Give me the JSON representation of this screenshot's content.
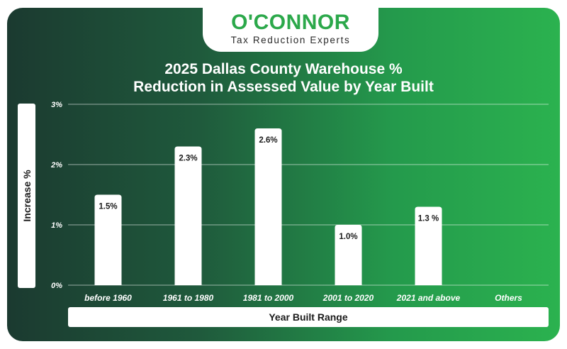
{
  "logo": {
    "name": "O'CONNOR",
    "tagline": "Tax Reduction Experts"
  },
  "chart_data": {
    "type": "bar",
    "title_line1": "2025 Dallas County Warehouse %",
    "title_line2": "Reduction in Assessed Value by Year Built",
    "xlabel": "Year Built Range",
    "ylabel": "Increase %",
    "categories": [
      "before 1960",
      "1961 to 1980",
      "1981 to 2000",
      "2001 to 2020",
      "2021 and above",
      "Others"
    ],
    "values": [
      1.5,
      2.3,
      2.6,
      1.0,
      1.3,
      null
    ],
    "data_labels": [
      "1.5%",
      "2.3%",
      "2.6%",
      "1.0%",
      "1.3 %",
      ""
    ],
    "y_ticks": [
      0,
      1,
      2,
      3
    ],
    "y_tick_labels": [
      "0%",
      "1%",
      "2%",
      "3%"
    ],
    "ylim": [
      0,
      3
    ],
    "grid": true,
    "bar_color": "#ffffff",
    "legend": "none"
  }
}
